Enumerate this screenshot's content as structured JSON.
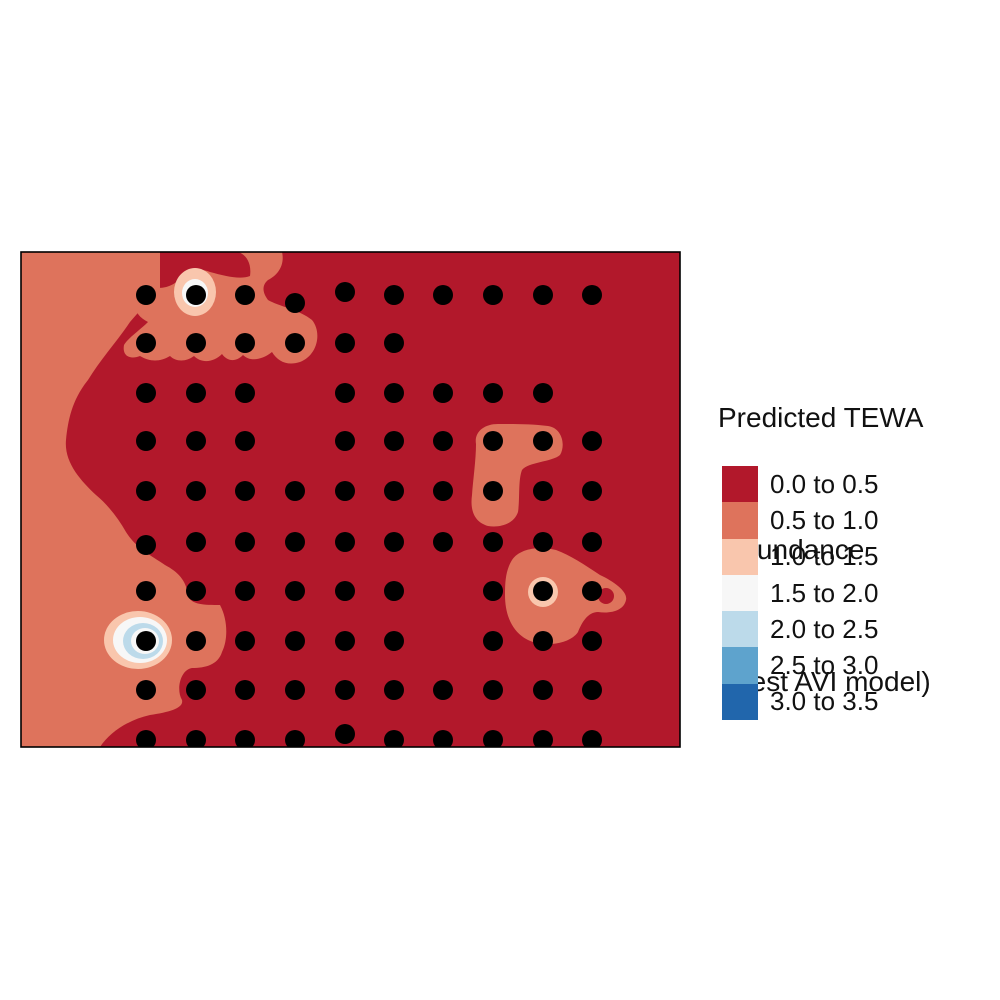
{
  "legend": {
    "title_lines": [
      "Predicted TEWA",
      " abundance",
      " (best AVI model)"
    ],
    "classes": [
      {
        "label": "0.0 to 0.5",
        "color": "#B2182B"
      },
      {
        "label": "0.5 to 1.0",
        "color": "#DE735C"
      },
      {
        "label": "1.0 to 1.5",
        "color": "#F9C6AD"
      },
      {
        "label": "1.5 to 2.0",
        "color": "#F7F7F7"
      },
      {
        "label": "2.0 to 2.5",
        "color": "#BCDAEA"
      },
      {
        "label": "2.5 to 3.0",
        "color": "#5EA3CD"
      },
      {
        "label": "3.0 to 3.5",
        "color": "#2166AC"
      }
    ]
  },
  "map": {
    "background_class": "0.0 to 0.5",
    "survey_point_color": "#000000",
    "survey_grid_columns": 10,
    "survey_grid_rows": 10
  }
}
